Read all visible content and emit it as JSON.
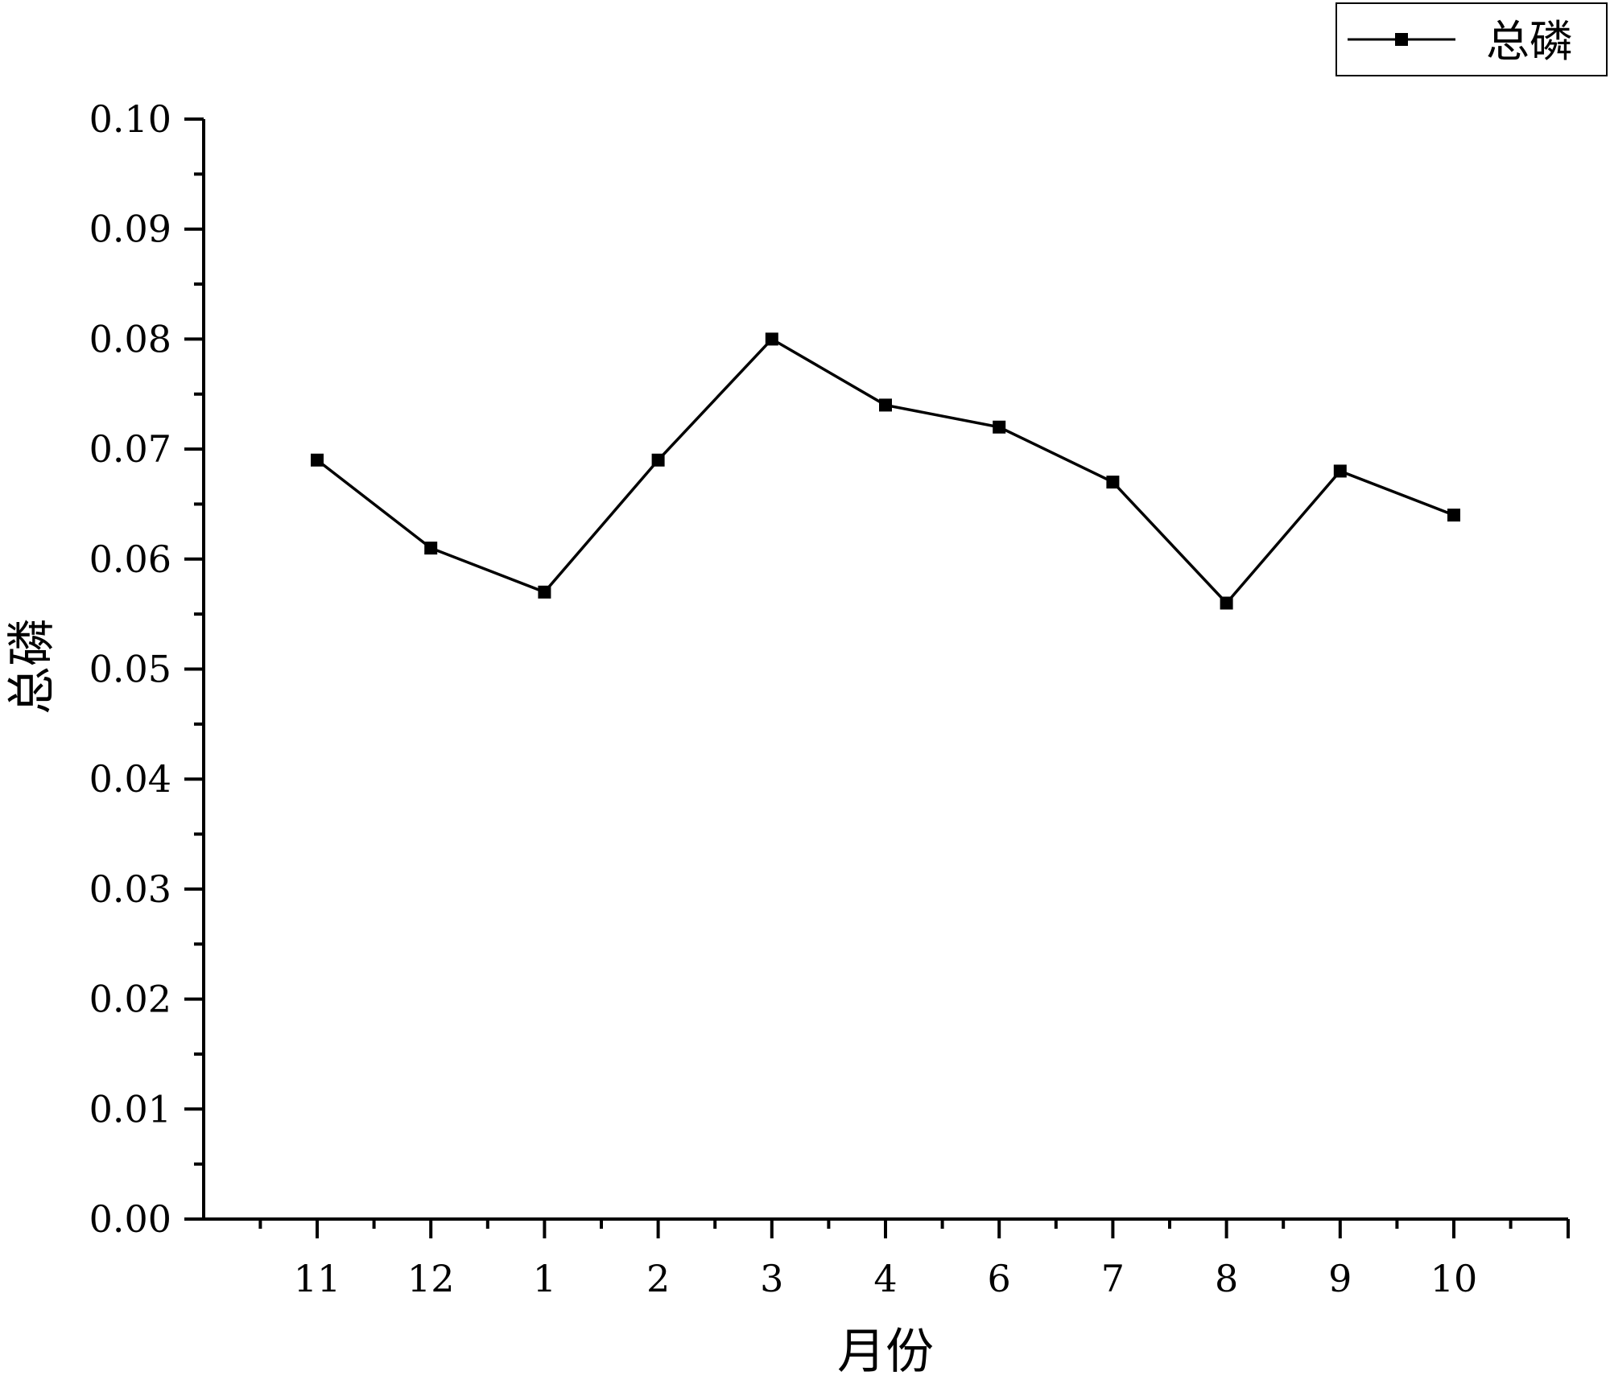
{
  "chart_data": {
    "type": "line",
    "categories": [
      "11",
      "12",
      "1",
      "2",
      "3",
      "4",
      "6",
      "7",
      "8",
      "9",
      "10"
    ],
    "series": [
      {
        "name": "总磷",
        "values": [
          0.069,
          0.061,
          0.057,
          0.069,
          0.08,
          0.074,
          0.072,
          0.067,
          0.056,
          0.068,
          0.064
        ],
        "color": "#000000",
        "marker": "square"
      }
    ],
    "xlabel": "月份",
    "ylabel": "总磷",
    "ylim": [
      0.0,
      0.1
    ],
    "yticks": [
      "0.00",
      "0.01",
      "0.02",
      "0.03",
      "0.04",
      "0.05",
      "0.06",
      "0.07",
      "0.08",
      "0.09",
      "0.10"
    ],
    "legend": {
      "position": "top-right",
      "label": "总磷"
    },
    "grid": false
  }
}
